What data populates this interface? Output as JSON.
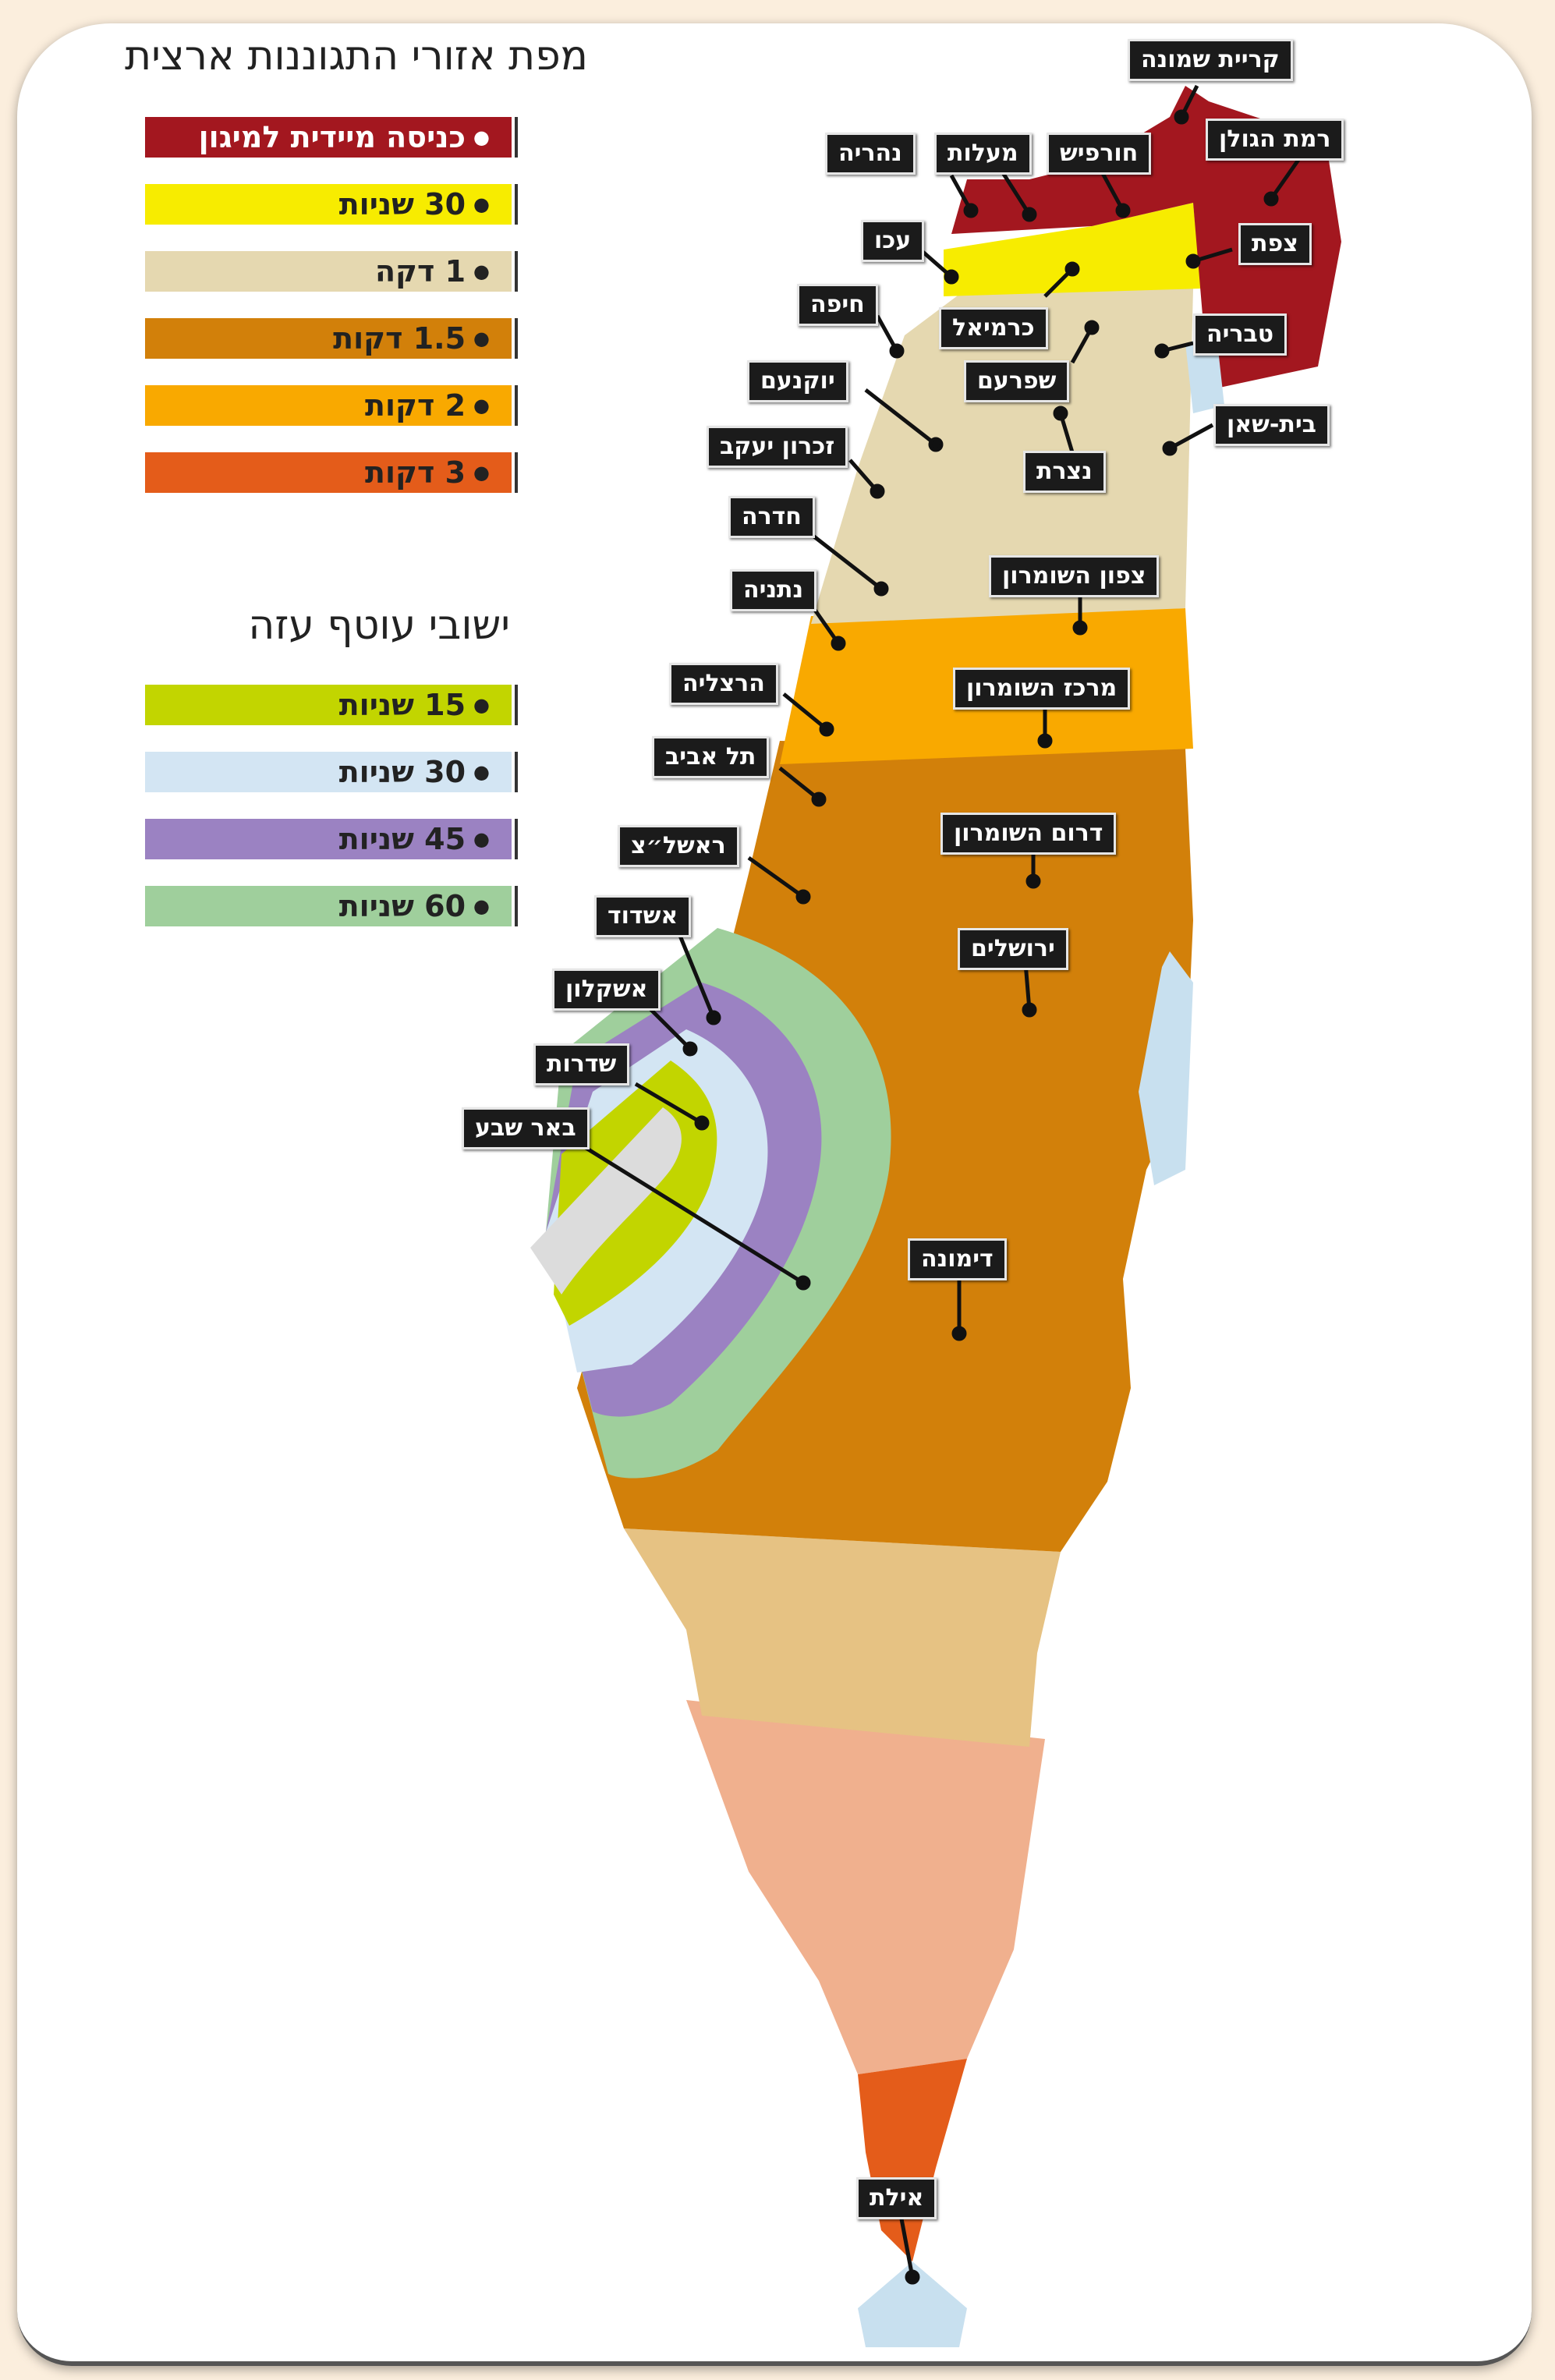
{
  "legend": {
    "title": "מפת אזורי התגוננות ארצית",
    "items": [
      {
        "label": "כניסה מיידית למיגון",
        "color": "#a3171f"
      },
      {
        "label": "30 שניות",
        "color": "#f7ec00"
      },
      {
        "label": "1 דקה",
        "color": "#e5d8b0"
      },
      {
        "label": "1.5 דקות",
        "color": "#d2800a"
      },
      {
        "label": "2 דקות",
        "color": "#f9a900"
      },
      {
        "label": "3 דקות",
        "color": "#e45c1a"
      }
    ]
  },
  "gaza_legend": {
    "title": "ישובי עוטף עזה",
    "items": [
      {
        "label": "15 שניות",
        "color": "#c2d500"
      },
      {
        "label": "30 שניות",
        "color": "#d3e5f3"
      },
      {
        "label": "45 שניות",
        "color": "#9b82c2"
      },
      {
        "label": "60 שניות",
        "color": "#9fcf9c"
      }
    ]
  },
  "cities": [
    {
      "name": "קריית שמונה"
    },
    {
      "name": "רמת הגולן"
    },
    {
      "name": "נהריה"
    },
    {
      "name": "מעלות"
    },
    {
      "name": "חורפיש"
    },
    {
      "name": "עכו"
    },
    {
      "name": "צפת"
    },
    {
      "name": "חיפה"
    },
    {
      "name": "כרמיאל"
    },
    {
      "name": "טבריה"
    },
    {
      "name": "יוקנעם"
    },
    {
      "name": "שפרעם"
    },
    {
      "name": "בית-שאן"
    },
    {
      "name": "זכרון יעקב"
    },
    {
      "name": "נצרת"
    },
    {
      "name": "חדרה"
    },
    {
      "name": "צפון השומרון"
    },
    {
      "name": "נתניה"
    },
    {
      "name": "הרצליה"
    },
    {
      "name": "מרכז השומרון"
    },
    {
      "name": "תל אביב"
    },
    {
      "name": "דרום השומרון"
    },
    {
      "name": "ראשל״צ"
    },
    {
      "name": "אשדוד"
    },
    {
      "name": "ירושלים"
    },
    {
      "name": "אשקלון"
    },
    {
      "name": "שדרות"
    },
    {
      "name": "באר שבע"
    },
    {
      "name": "דימונה"
    },
    {
      "name": "אילת"
    }
  ]
}
